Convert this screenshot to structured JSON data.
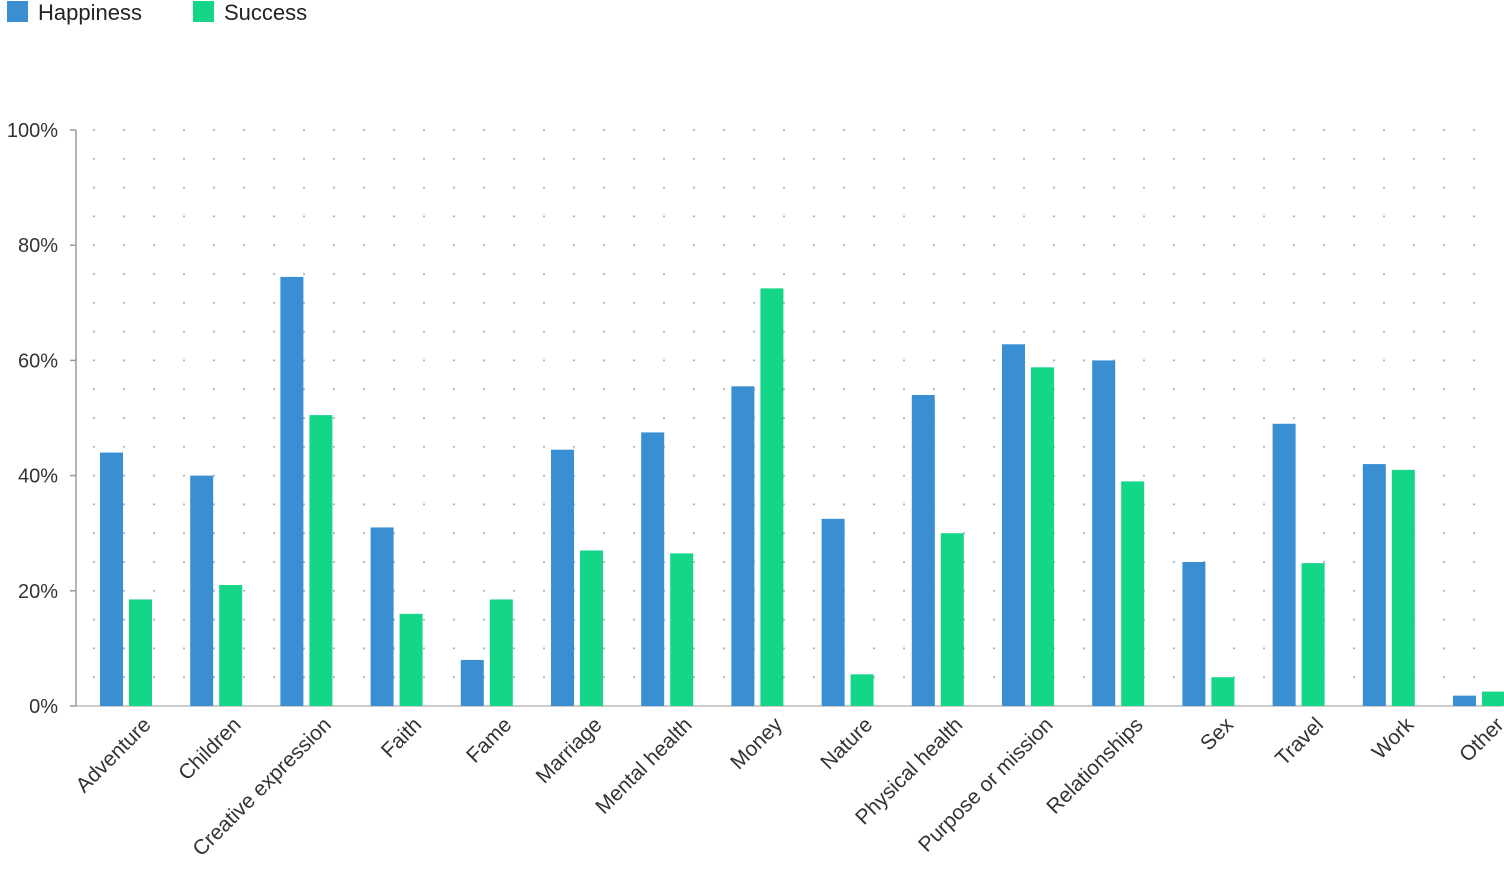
{
  "chart_data": {
    "type": "bar",
    "categories": [
      "Adventure",
      "Children",
      "Creative expression",
      "Faith",
      "Fame",
      "Marriage",
      "Mental health",
      "Money",
      "Nature",
      "Physical health",
      "Purpose or mission",
      "Relationships",
      "Sex",
      "Travel",
      "Work",
      "Other"
    ],
    "series": [
      {
        "name": "Happiness",
        "color": "#3a8fd3",
        "values": [
          44,
          40,
          74.5,
          31,
          8,
          44.5,
          47.5,
          55.5,
          32.5,
          54,
          62.8,
          60,
          25,
          49,
          42,
          1.8
        ]
      },
      {
        "name": "Success",
        "color": "#13d787",
        "values": [
          18.5,
          21,
          50.5,
          16,
          18.5,
          27,
          26.5,
          72.5,
          5.5,
          30,
          58.8,
          39,
          5,
          24.8,
          41,
          2.5
        ]
      }
    ],
    "yticks": [
      "0%",
      "20%",
      "40%",
      "60%",
      "80%",
      "100%"
    ],
    "ylim": [
      0,
      100
    ],
    "legend_position": "top-left",
    "grid": "dotted"
  }
}
